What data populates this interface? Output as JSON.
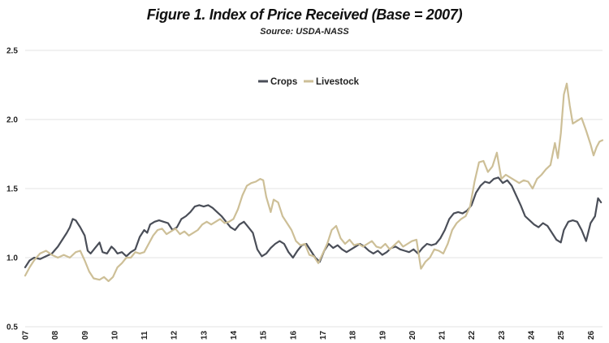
{
  "header": {
    "title": "Figure 1. Index of Price Received (Base = 2007)",
    "subtitle": "Source:  USDA-NASS"
  },
  "colors": {
    "crops": "#4a4e58",
    "livestock": "#cdbf97",
    "grid": "#e3e3e3"
  },
  "chart_data": {
    "type": "line",
    "title": "Figure 1. Index of Price Received (Base = 2007)",
    "subtitle": "Source:  USDA-NASS",
    "xlabel": "",
    "ylabel": "",
    "ylim": [
      0.5,
      2.5
    ],
    "xlim": [
      2007,
      2026.4
    ],
    "yticks": [
      "0.5",
      "1.0",
      "1.5",
      "2.0",
      "2.5"
    ],
    "xticks": [
      "07",
      "08",
      "09",
      "10",
      "11",
      "12",
      "13",
      "14",
      "15",
      "16",
      "17",
      "18",
      "19",
      "20",
      "21",
      "22",
      "23",
      "24",
      "25",
      "26"
    ],
    "grid": "horizontal",
    "legend": "top-center",
    "series": [
      {
        "name": "Crops",
        "color": "#4a4e58",
        "points": [
          [
            2007.0,
            0.93
          ],
          [
            2007.15,
            0.98
          ],
          [
            2007.3,
            1.0
          ],
          [
            2007.5,
            0.99
          ],
          [
            2007.7,
            1.01
          ],
          [
            2007.9,
            1.03
          ],
          [
            2008.1,
            1.08
          ],
          [
            2008.25,
            1.13
          ],
          [
            2008.4,
            1.18
          ],
          [
            2008.5,
            1.22
          ],
          [
            2008.6,
            1.28
          ],
          [
            2008.7,
            1.27
          ],
          [
            2008.85,
            1.22
          ],
          [
            2009.0,
            1.16
          ],
          [
            2009.1,
            1.05
          ],
          [
            2009.2,
            1.03
          ],
          [
            2009.35,
            1.07
          ],
          [
            2009.5,
            1.11
          ],
          [
            2009.6,
            1.04
          ],
          [
            2009.75,
            1.03
          ],
          [
            2009.9,
            1.08
          ],
          [
            2010.0,
            1.06
          ],
          [
            2010.1,
            1.03
          ],
          [
            2010.25,
            1.04
          ],
          [
            2010.4,
            1.01
          ],
          [
            2010.55,
            1.04
          ],
          [
            2010.7,
            1.06
          ],
          [
            2010.85,
            1.15
          ],
          [
            2011.0,
            1.2
          ],
          [
            2011.1,
            1.18
          ],
          [
            2011.2,
            1.24
          ],
          [
            2011.35,
            1.26
          ],
          [
            2011.5,
            1.27
          ],
          [
            2011.65,
            1.26
          ],
          [
            2011.8,
            1.25
          ],
          [
            2011.95,
            1.2
          ],
          [
            2012.1,
            1.22
          ],
          [
            2012.25,
            1.28
          ],
          [
            2012.4,
            1.3
          ],
          [
            2012.55,
            1.33
          ],
          [
            2012.7,
            1.37
          ],
          [
            2012.85,
            1.38
          ],
          [
            2013.0,
            1.37
          ],
          [
            2013.15,
            1.38
          ],
          [
            2013.3,
            1.36
          ],
          [
            2013.45,
            1.33
          ],
          [
            2013.6,
            1.3
          ],
          [
            2013.75,
            1.26
          ],
          [
            2013.9,
            1.22
          ],
          [
            2014.05,
            1.2
          ],
          [
            2014.2,
            1.24
          ],
          [
            2014.35,
            1.26
          ],
          [
            2014.5,
            1.22
          ],
          [
            2014.65,
            1.18
          ],
          [
            2014.8,
            1.06
          ],
          [
            2014.95,
            1.01
          ],
          [
            2015.1,
            1.03
          ],
          [
            2015.25,
            1.07
          ],
          [
            2015.4,
            1.1
          ],
          [
            2015.55,
            1.12
          ],
          [
            2015.7,
            1.1
          ],
          [
            2015.85,
            1.04
          ],
          [
            2016.0,
            1.0
          ],
          [
            2016.15,
            1.05
          ],
          [
            2016.3,
            1.09
          ],
          [
            2016.45,
            1.1
          ],
          [
            2016.6,
            1.05
          ],
          [
            2016.75,
            1.0
          ],
          [
            2016.9,
            0.97
          ],
          [
            2017.05,
            1.05
          ],
          [
            2017.2,
            1.1
          ],
          [
            2017.35,
            1.07
          ],
          [
            2017.5,
            1.09
          ],
          [
            2017.65,
            1.06
          ],
          [
            2017.8,
            1.04
          ],
          [
            2017.95,
            1.06
          ],
          [
            2018.1,
            1.08
          ],
          [
            2018.25,
            1.1
          ],
          [
            2018.4,
            1.08
          ],
          [
            2018.55,
            1.05
          ],
          [
            2018.7,
            1.03
          ],
          [
            2018.85,
            1.05
          ],
          [
            2019.0,
            1.02
          ],
          [
            2019.15,
            1.04
          ],
          [
            2019.3,
            1.07
          ],
          [
            2019.45,
            1.08
          ],
          [
            2019.6,
            1.06
          ],
          [
            2019.75,
            1.05
          ],
          [
            2019.9,
            1.04
          ],
          [
            2020.05,
            1.06
          ],
          [
            2020.2,
            1.03
          ],
          [
            2020.35,
            1.07
          ],
          [
            2020.5,
            1.1
          ],
          [
            2020.65,
            1.09
          ],
          [
            2020.8,
            1.1
          ],
          [
            2020.95,
            1.14
          ],
          [
            2021.1,
            1.2
          ],
          [
            2021.25,
            1.28
          ],
          [
            2021.4,
            1.32
          ],
          [
            2021.55,
            1.33
          ],
          [
            2021.7,
            1.32
          ],
          [
            2021.85,
            1.34
          ],
          [
            2022.0,
            1.38
          ],
          [
            2022.15,
            1.47
          ],
          [
            2022.3,
            1.52
          ],
          [
            2022.45,
            1.55
          ],
          [
            2022.6,
            1.54
          ],
          [
            2022.75,
            1.57
          ],
          [
            2022.9,
            1.58
          ],
          [
            2023.05,
            1.54
          ],
          [
            2023.2,
            1.56
          ],
          [
            2023.35,
            1.52
          ],
          [
            2023.5,
            1.45
          ],
          [
            2023.65,
            1.38
          ],
          [
            2023.8,
            1.3
          ],
          [
            2023.95,
            1.27
          ],
          [
            2024.1,
            1.24
          ],
          [
            2024.25,
            1.22
          ],
          [
            2024.4,
            1.25
          ],
          [
            2024.55,
            1.23
          ],
          [
            2024.7,
            1.18
          ],
          [
            2024.85,
            1.13
          ],
          [
            2025.0,
            1.11
          ],
          [
            2025.1,
            1.2
          ],
          [
            2025.25,
            1.26
          ],
          [
            2025.4,
            1.27
          ],
          [
            2025.55,
            1.26
          ],
          [
            2025.7,
            1.2
          ],
          [
            2025.85,
            1.12
          ],
          [
            2026.0,
            1.25
          ],
          [
            2026.15,
            1.3
          ],
          [
            2026.25,
            1.43
          ],
          [
            2026.35,
            1.4
          ]
        ]
      },
      {
        "name": "Livestock",
        "color": "#cdbf97",
        "points": [
          [
            2007.0,
            0.87
          ],
          [
            2007.15,
            0.93
          ],
          [
            2007.3,
            0.98
          ],
          [
            2007.5,
            1.03
          ],
          [
            2007.7,
            1.05
          ],
          [
            2007.9,
            1.02
          ],
          [
            2008.1,
            1.0
          ],
          [
            2008.3,
            1.02
          ],
          [
            2008.5,
            1.0
          ],
          [
            2008.7,
            1.04
          ],
          [
            2008.85,
            1.05
          ],
          [
            2009.0,
            0.98
          ],
          [
            2009.15,
            0.9
          ],
          [
            2009.3,
            0.85
          ],
          [
            2009.5,
            0.84
          ],
          [
            2009.65,
            0.86
          ],
          [
            2009.8,
            0.83
          ],
          [
            2009.95,
            0.86
          ],
          [
            2010.1,
            0.93
          ],
          [
            2010.25,
            0.96
          ],
          [
            2010.4,
            1.0
          ],
          [
            2010.55,
            1.0
          ],
          [
            2010.7,
            1.04
          ],
          [
            2010.85,
            1.03
          ],
          [
            2011.0,
            1.04
          ],
          [
            2011.15,
            1.1
          ],
          [
            2011.3,
            1.16
          ],
          [
            2011.45,
            1.2
          ],
          [
            2011.6,
            1.21
          ],
          [
            2011.75,
            1.17
          ],
          [
            2011.9,
            1.19
          ],
          [
            2012.05,
            1.21
          ],
          [
            2012.2,
            1.17
          ],
          [
            2012.35,
            1.19
          ],
          [
            2012.5,
            1.16
          ],
          [
            2012.65,
            1.18
          ],
          [
            2012.8,
            1.2
          ],
          [
            2012.95,
            1.24
          ],
          [
            2013.1,
            1.26
          ],
          [
            2013.25,
            1.24
          ],
          [
            2013.4,
            1.26
          ],
          [
            2013.55,
            1.28
          ],
          [
            2013.7,
            1.25
          ],
          [
            2013.85,
            1.26
          ],
          [
            2014.0,
            1.28
          ],
          [
            2014.15,
            1.35
          ],
          [
            2014.3,
            1.45
          ],
          [
            2014.45,
            1.52
          ],
          [
            2014.6,
            1.54
          ],
          [
            2014.75,
            1.55
          ],
          [
            2014.9,
            1.57
          ],
          [
            2015.0,
            1.56
          ],
          [
            2015.1,
            1.44
          ],
          [
            2015.25,
            1.33
          ],
          [
            2015.35,
            1.42
          ],
          [
            2015.5,
            1.4
          ],
          [
            2015.65,
            1.3
          ],
          [
            2015.8,
            1.25
          ],
          [
            2015.95,
            1.2
          ],
          [
            2016.1,
            1.12
          ],
          [
            2016.25,
            1.09
          ],
          [
            2016.4,
            1.1
          ],
          [
            2016.55,
            1.02
          ],
          [
            2016.7,
            1.01
          ],
          [
            2016.85,
            0.96
          ],
          [
            2017.0,
            1.03
          ],
          [
            2017.15,
            1.1
          ],
          [
            2017.3,
            1.2
          ],
          [
            2017.45,
            1.23
          ],
          [
            2017.6,
            1.14
          ],
          [
            2017.75,
            1.1
          ],
          [
            2017.9,
            1.13
          ],
          [
            2018.05,
            1.09
          ],
          [
            2018.2,
            1.1
          ],
          [
            2018.35,
            1.08
          ],
          [
            2018.5,
            1.1
          ],
          [
            2018.65,
            1.12
          ],
          [
            2018.8,
            1.08
          ],
          [
            2018.95,
            1.07
          ],
          [
            2019.1,
            1.1
          ],
          [
            2019.25,
            1.06
          ],
          [
            2019.4,
            1.09
          ],
          [
            2019.55,
            1.12
          ],
          [
            2019.7,
            1.08
          ],
          [
            2019.85,
            1.1
          ],
          [
            2020.0,
            1.12
          ],
          [
            2020.15,
            1.13
          ],
          [
            2020.3,
            0.92
          ],
          [
            2020.45,
            0.97
          ],
          [
            2020.6,
            1.0
          ],
          [
            2020.75,
            1.06
          ],
          [
            2020.9,
            1.05
          ],
          [
            2021.05,
            1.03
          ],
          [
            2021.2,
            1.1
          ],
          [
            2021.35,
            1.2
          ],
          [
            2021.5,
            1.25
          ],
          [
            2021.65,
            1.28
          ],
          [
            2021.8,
            1.3
          ],
          [
            2021.95,
            1.37
          ],
          [
            2022.1,
            1.55
          ],
          [
            2022.25,
            1.69
          ],
          [
            2022.4,
            1.7
          ],
          [
            2022.55,
            1.62
          ],
          [
            2022.7,
            1.66
          ],
          [
            2022.85,
            1.76
          ],
          [
            2023.0,
            1.57
          ],
          [
            2023.15,
            1.6
          ],
          [
            2023.3,
            1.58
          ],
          [
            2023.45,
            1.56
          ],
          [
            2023.6,
            1.54
          ],
          [
            2023.75,
            1.56
          ],
          [
            2023.9,
            1.55
          ],
          [
            2024.05,
            1.5
          ],
          [
            2024.2,
            1.57
          ],
          [
            2024.35,
            1.6
          ],
          [
            2024.5,
            1.64
          ],
          [
            2024.65,
            1.67
          ],
          [
            2024.8,
            1.83
          ],
          [
            2024.9,
            1.72
          ],
          [
            2025.0,
            1.9
          ],
          [
            2025.1,
            2.18
          ],
          [
            2025.2,
            2.26
          ],
          [
            2025.3,
            2.1
          ],
          [
            2025.4,
            1.97
          ],
          [
            2025.55,
            1.99
          ],
          [
            2025.7,
            2.01
          ],
          [
            2025.85,
            1.92
          ],
          [
            2026.0,
            1.82
          ],
          [
            2026.1,
            1.74
          ],
          [
            2026.2,
            1.8
          ],
          [
            2026.3,
            1.84
          ],
          [
            2026.4,
            1.85
          ]
        ]
      }
    ]
  }
}
